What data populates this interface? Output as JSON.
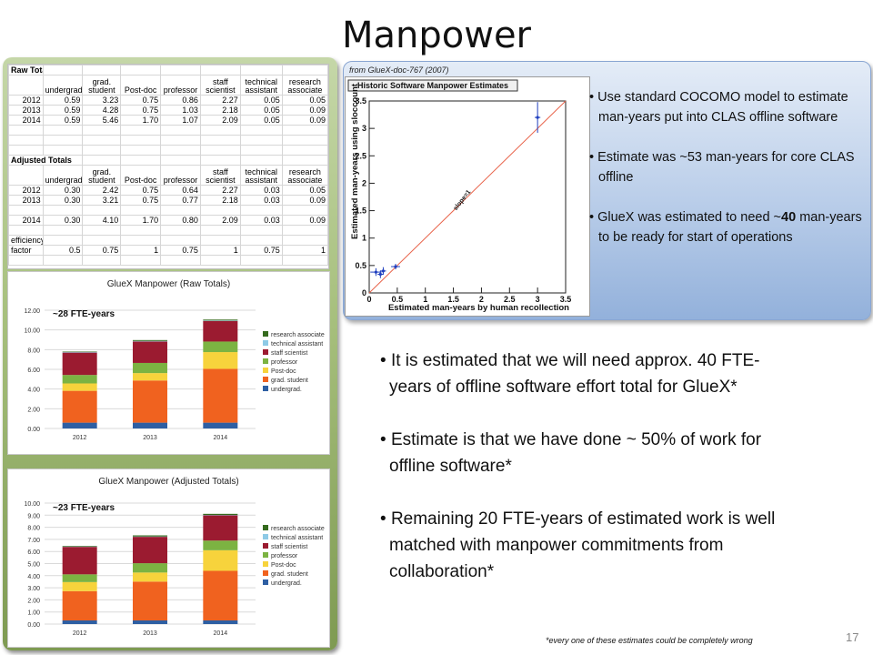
{
  "slide": {
    "title": "Manpower",
    "page_number": "17",
    "footnote": "*every one of these estimates could be completely wrong",
    "source_note": "from GlueX-doc-767 (2007)",
    "panel_bullets": [
      {
        "text": "Use standard COCOMO model to estimate man-years put into CLAS offline software"
      },
      {
        "text": "Estimate was ~53 man-years for core CLAS offline"
      },
      {
        "pre": "GlueX was estimated to need ~",
        "bold": "40",
        "post": " man-years to be ready for start of operations"
      }
    ],
    "main_bullets": [
      "It is estimated that we will need approx. 40 FTE-years of offline software effort total for GlueX*",
      "Estimate is that we have done ~ 50% of work for offline software*",
      "Remaining 20 FTE-years of estimated work is well matched with manpower commitments from collaboration*"
    ]
  },
  "spreadsheet": {
    "raw_title": "Raw Totals",
    "adjusted_title": "Adjusted Totals",
    "headers": [
      "undergrad.",
      "grad. student",
      "Post-doc",
      "professor",
      "staff scientist",
      "technical assistant",
      "research associate"
    ],
    "raw_rows": [
      {
        "year": "2012",
        "cells": [
          "0.59",
          "3.23",
          "0.75",
          "0.86",
          "2.27",
          "0.05",
          "0.05"
        ]
      },
      {
        "year": "2013",
        "cells": [
          "0.59",
          "4.28",
          "0.75",
          "1.03",
          "2.18",
          "0.05",
          "0.09"
        ]
      },
      {
        "year": "2014",
        "cells": [
          "0.59",
          "5.46",
          "1.70",
          "1.07",
          "2.09",
          "0.05",
          "0.09"
        ]
      }
    ],
    "adjusted_rows": [
      {
        "year": "2012",
        "cells": [
          "0.30",
          "2.42",
          "0.75",
          "0.64",
          "2.27",
          "0.03",
          "0.05"
        ]
      },
      {
        "year": "2013",
        "cells": [
          "0.30",
          "3.21",
          "0.75",
          "0.77",
          "2.18",
          "0.03",
          "0.09"
        ]
      },
      {
        "year": "2014",
        "cells": [
          "0.30",
          "4.10",
          "1.70",
          "0.80",
          "2.09",
          "0.03",
          "0.09"
        ]
      }
    ],
    "efficiency_label_1": "efficiency",
    "efficiency_label_2": "factor",
    "efficiency_values": [
      "0.5",
      "0.75",
      "1",
      "0.75",
      "1",
      "0.75",
      "1"
    ]
  },
  "chart_data": [
    {
      "type": "bar",
      "stacked": true,
      "title": "GlueX Manpower (Raw Totals)",
      "annotation": "~28 FTE-years",
      "categories": [
        "2012",
        "2013",
        "2014"
      ],
      "ylim": [
        0,
        12
      ],
      "yticks": [
        "0.00",
        "2.00",
        "4.00",
        "6.00",
        "8.00",
        "10.00",
        "12.00"
      ],
      "legend_position": "right",
      "series": [
        {
          "name": "undergrad.",
          "color": "#2e5fa3",
          "values": [
            0.59,
            0.59,
            0.59
          ]
        },
        {
          "name": "grad. student",
          "color": "#f0621f",
          "values": [
            3.23,
            4.28,
            5.46
          ]
        },
        {
          "name": "Post-doc",
          "color": "#f7d33c",
          "values": [
            0.75,
            0.75,
            1.7
          ]
        },
        {
          "name": "professor",
          "color": "#7cb342",
          "values": [
            0.86,
            1.03,
            1.07
          ]
        },
        {
          "name": "staff scientist",
          "color": "#9b1b30",
          "values": [
            2.27,
            2.18,
            2.09
          ]
        },
        {
          "name": "technical assistant",
          "color": "#8ecae6",
          "values": [
            0.05,
            0.05,
            0.05
          ]
        },
        {
          "name": "research associate",
          "color": "#356b1e",
          "values": [
            0.05,
            0.09,
            0.09
          ]
        }
      ]
    },
    {
      "type": "bar",
      "stacked": true,
      "title": "GlueX Manpower (Adjusted Totals)",
      "annotation": "~23 FTE-years",
      "categories": [
        "2012",
        "2013",
        "2014"
      ],
      "ylim": [
        0,
        10
      ],
      "yticks": [
        "0.00",
        "1.00",
        "2.00",
        "3.00",
        "4.00",
        "5.00",
        "6.00",
        "7.00",
        "8.00",
        "9.00",
        "10.00"
      ],
      "legend_position": "right",
      "series": [
        {
          "name": "undergrad.",
          "color": "#2e5fa3",
          "values": [
            0.3,
            0.3,
            0.3
          ]
        },
        {
          "name": "grad. student",
          "color": "#f0621f",
          "values": [
            2.42,
            3.21,
            4.1
          ]
        },
        {
          "name": "Post-doc",
          "color": "#f7d33c",
          "values": [
            0.75,
            0.75,
            1.7
          ]
        },
        {
          "name": "professor",
          "color": "#7cb342",
          "values": [
            0.64,
            0.77,
            0.8
          ]
        },
        {
          "name": "staff scientist",
          "color": "#9b1b30",
          "values": [
            2.27,
            2.18,
            2.09
          ]
        },
        {
          "name": "technical assistant",
          "color": "#8ecae6",
          "values": [
            0.03,
            0.03,
            0.03
          ]
        },
        {
          "name": "research associate",
          "color": "#356b1e",
          "values": [
            0.05,
            0.09,
            0.09
          ]
        }
      ]
    },
    {
      "type": "scatter",
      "title": "Historic Software Manpower Estimates",
      "xlabel": "Estimated man-years by human recollection",
      "ylabel": "Estimated man-years using sloccount",
      "xlim": [
        0,
        3.5
      ],
      "ylim": [
        0,
        3.5
      ],
      "xticks": [
        "0",
        "0.5",
        "1",
        "1.5",
        "2",
        "2.5",
        "3",
        "3.5"
      ],
      "yticks": [
        "0",
        "0.5",
        "1",
        "1.5",
        "2",
        "2.5",
        "3",
        "3.5"
      ],
      "line_label": "slope=1",
      "line_color": "#e8634a",
      "point_color": "#1f3fbf",
      "points": [
        {
          "x": 0.12,
          "y": 0.38,
          "xerr": 0.1,
          "yerr": 0.07
        },
        {
          "x": 0.2,
          "y": 0.34,
          "xerr": 0.05,
          "yerr": 0.07
        },
        {
          "x": 0.25,
          "y": 0.4,
          "xerr": 0.05,
          "yerr": 0.07
        },
        {
          "x": 0.47,
          "y": 0.48,
          "xerr": 0.08,
          "yerr": 0.05
        },
        {
          "x": 3.0,
          "y": 3.2,
          "xerr": 0.05,
          "yerr": 0.28
        }
      ]
    }
  ]
}
